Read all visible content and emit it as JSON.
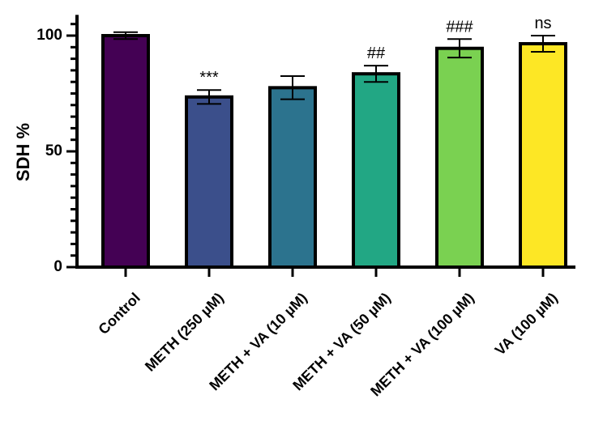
{
  "chart_data": {
    "type": "bar",
    "title": "",
    "xlabel": "",
    "ylabel": "SDH %",
    "ylim": [
      0,
      110
    ],
    "yticks": [
      0,
      50,
      100
    ],
    "minor_tick_step": 5,
    "categories": [
      "Control",
      "METH (250 µM)",
      "METH + VA (10 µM)",
      "METH + VA (50 µM)",
      "METH + VA (100 µM)",
      "VA (100 µM)"
    ],
    "values": [
      100,
      73.5,
      77.5,
      83.5,
      94.5,
      96.5
    ],
    "errors": [
      1.5,
      3,
      5,
      3.5,
      4,
      3.5
    ],
    "annotations": [
      "",
      "***",
      "",
      "##",
      "###",
      "ns"
    ],
    "colors": [
      "#440154",
      "#3b4f8b",
      "#2c738e",
      "#22a784",
      "#7ad151",
      "#fde725"
    ]
  }
}
